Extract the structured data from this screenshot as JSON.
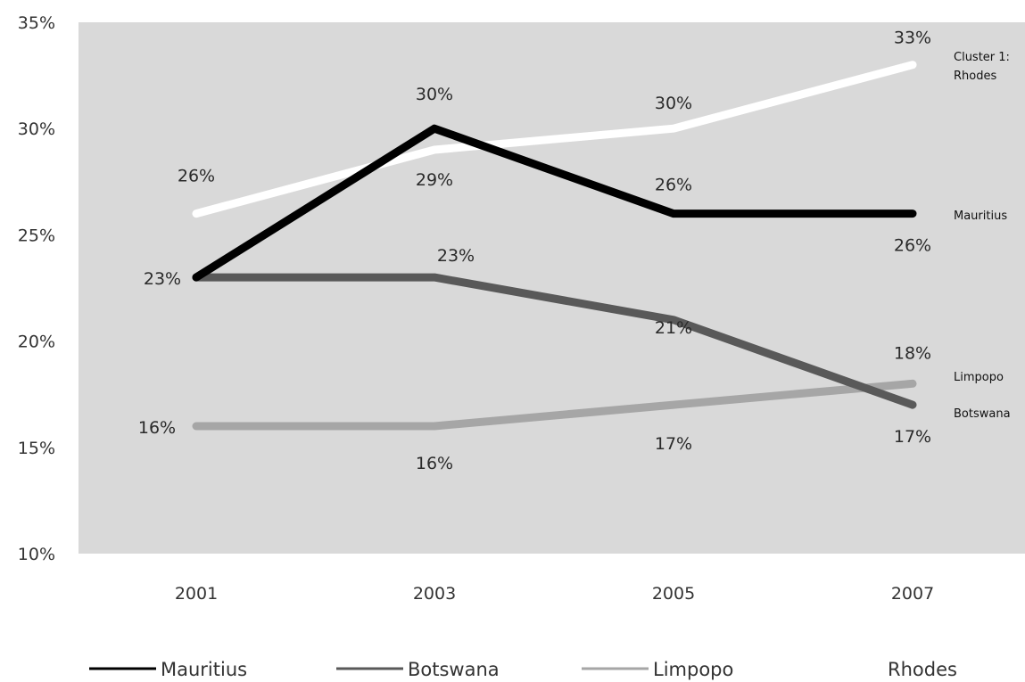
{
  "chart_data": {
    "type": "line",
    "title": "",
    "xlabel": "",
    "ylabel": "",
    "categories": [
      "2001",
      "2003",
      "2005",
      "2007"
    ],
    "y_tick_labels": [
      "10%",
      "15%",
      "20%",
      "25%",
      "30%",
      "35%"
    ],
    "ylim": [
      10,
      35
    ],
    "grid": false,
    "plot_background": "#d9d9d9",
    "legend_position": "bottom",
    "series": [
      {
        "name": "Mauritius",
        "values": [
          23,
          30,
          26,
          26
        ],
        "labels": [
          "23%",
          "30%",
          "26%",
          "26%"
        ],
        "end_label": "Mauritius",
        "color": "#000000"
      },
      {
        "name": "Botswana",
        "values": [
          23,
          23,
          21,
          17
        ],
        "labels": [
          "",
          "23%",
          "21%",
          "17%"
        ],
        "end_label": "Botswana",
        "color": "#595959"
      },
      {
        "name": "Limpopo",
        "values": [
          16,
          16,
          17,
          18
        ],
        "labels": [
          "16%",
          "16%",
          "17%",
          "18%"
        ],
        "end_label": "Limpopo",
        "color": "#a6a6a6"
      },
      {
        "name": "Rhodes",
        "values": [
          26,
          29,
          30,
          33
        ],
        "labels": [
          "26%",
          "29%",
          "30%",
          "33%"
        ],
        "end_label": [
          "Cluster 1:",
          "Rhodes"
        ],
        "color": "#ffffff"
      }
    ]
  }
}
